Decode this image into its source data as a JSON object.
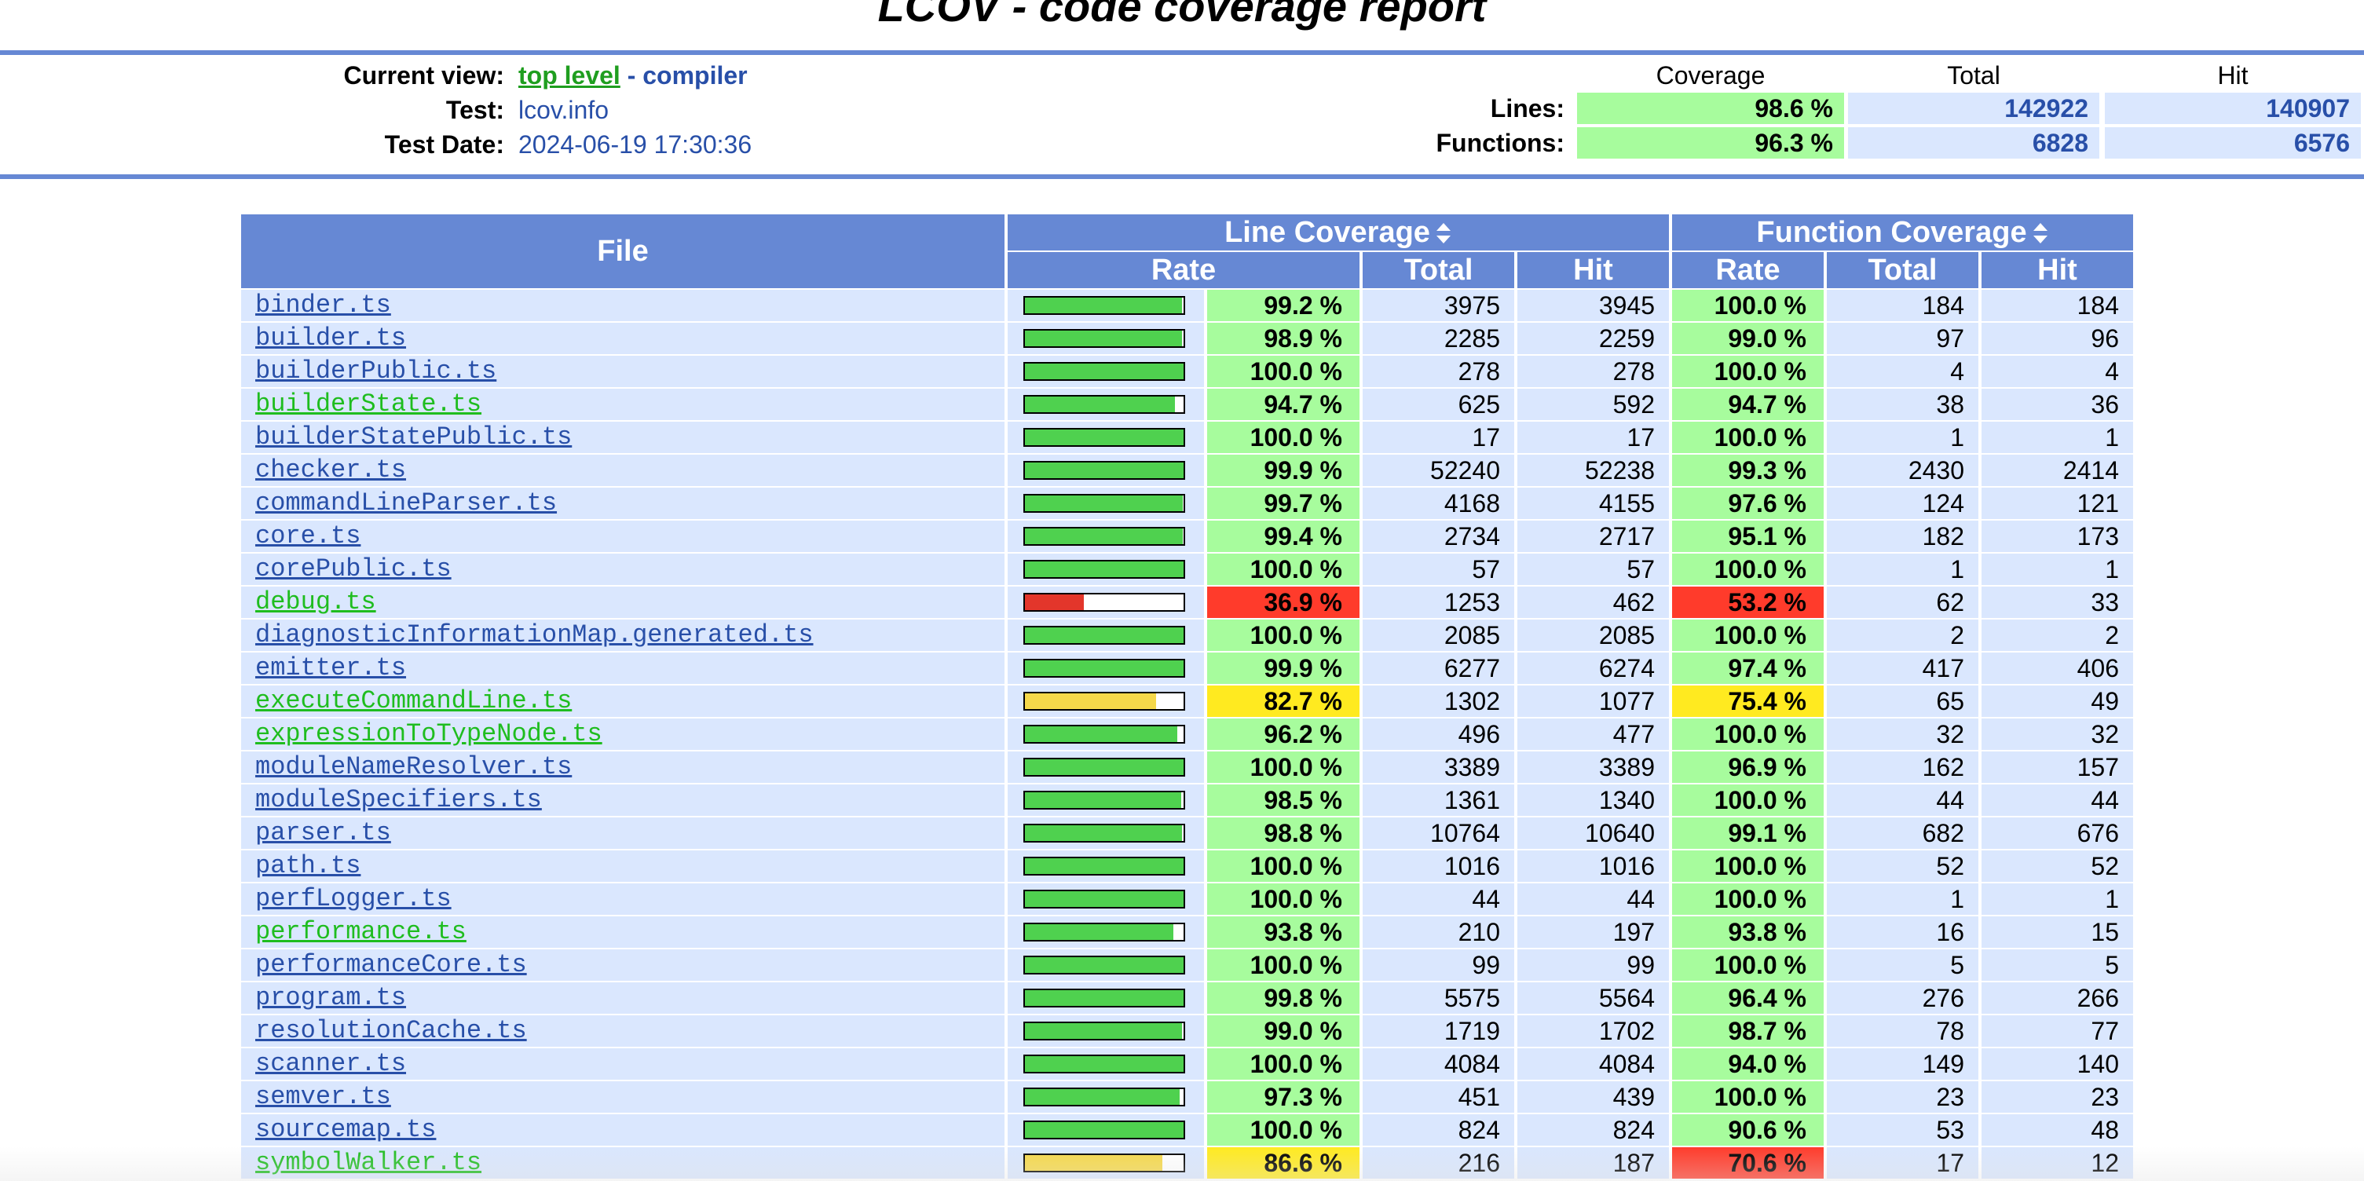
{
  "title": "LCOV - code coverage report",
  "header": {
    "labels": {
      "current_view": "Current view:",
      "test": "Test:",
      "test_date": "Test Date:"
    },
    "current_view": {
      "link": "top level",
      "separator": " - ",
      "current": "compiler"
    },
    "test": "lcov.info",
    "test_date": "2024-06-19 17:30:36",
    "summary": {
      "columns": [
        "Coverage",
        "Total",
        "Hit"
      ],
      "lines": {
        "label": "Lines:",
        "coverage": "98.6 %",
        "total": "142922",
        "hit": "140907"
      },
      "functions": {
        "label": "Functions:",
        "coverage": "96.3 %",
        "total": "6828",
        "hit": "6576"
      }
    }
  },
  "table": {
    "headers": {
      "file": "File",
      "line_coverage": "Line Coverage",
      "function_coverage": "Function Coverage",
      "rate": "Rate",
      "total": "Total",
      "hit": "Hit"
    },
    "colors": {
      "high": "#a7fc9d",
      "medium": "#ffea20",
      "low": "#ff3b2b",
      "bar_high": "#4fd14f",
      "bar_medium": "#f5d84a",
      "bar_low": "#e3362b"
    },
    "rows": [
      {
        "file": "binder.ts",
        "line_rate": "99.2 %",
        "line_pct": 99.2,
        "line_level": "hi",
        "line_total": "3975",
        "line_hit": "3945",
        "fn_rate": "100.0 %",
        "fn_level": "hi",
        "fn_total": "184",
        "fn_hit": "184"
      },
      {
        "file": "builder.ts",
        "line_rate": "98.9 %",
        "line_pct": 98.9,
        "line_level": "hi",
        "line_total": "2285",
        "line_hit": "2259",
        "fn_rate": "99.0 %",
        "fn_level": "hi",
        "fn_total": "97",
        "fn_hit": "96"
      },
      {
        "file": "builderPublic.ts",
        "line_rate": "100.0 %",
        "line_pct": 100,
        "line_level": "hi",
        "line_total": "278",
        "line_hit": "278",
        "fn_rate": "100.0 %",
        "fn_level": "hi",
        "fn_total": "4",
        "fn_hit": "4"
      },
      {
        "file": "builderState.ts",
        "line_rate": "94.7 %",
        "line_pct": 94.7,
        "line_level": "hi",
        "line_total": "625",
        "line_hit": "592",
        "fn_rate": "94.7 %",
        "fn_level": "hi",
        "fn_total": "38",
        "fn_hit": "36"
      },
      {
        "file": "builderStatePublic.ts",
        "line_rate": "100.0 %",
        "line_pct": 100,
        "line_level": "hi",
        "line_total": "17",
        "line_hit": "17",
        "fn_rate": "100.0 %",
        "fn_level": "hi",
        "fn_total": "1",
        "fn_hit": "1"
      },
      {
        "file": "checker.ts",
        "line_rate": "99.9 %",
        "line_pct": 99.9,
        "line_level": "hi",
        "line_total": "52240",
        "line_hit": "52238",
        "fn_rate": "99.3 %",
        "fn_level": "hi",
        "fn_total": "2430",
        "fn_hit": "2414"
      },
      {
        "file": "commandLineParser.ts",
        "line_rate": "99.7 %",
        "line_pct": 99.7,
        "line_level": "hi",
        "line_total": "4168",
        "line_hit": "4155",
        "fn_rate": "97.6 %",
        "fn_level": "hi",
        "fn_total": "124",
        "fn_hit": "121"
      },
      {
        "file": "core.ts",
        "line_rate": "99.4 %",
        "line_pct": 99.4,
        "line_level": "hi",
        "line_total": "2734",
        "line_hit": "2717",
        "fn_rate": "95.1 %",
        "fn_level": "hi",
        "fn_total": "182",
        "fn_hit": "173"
      },
      {
        "file": "corePublic.ts",
        "line_rate": "100.0 %",
        "line_pct": 100,
        "line_level": "hi",
        "line_total": "57",
        "line_hit": "57",
        "fn_rate": "100.0 %",
        "fn_level": "hi",
        "fn_total": "1",
        "fn_hit": "1"
      },
      {
        "file": "debug.ts",
        "line_rate": "36.9 %",
        "line_pct": 36.9,
        "line_level": "lo",
        "line_total": "1253",
        "line_hit": "462",
        "fn_rate": "53.2 %",
        "fn_level": "lo",
        "fn_total": "62",
        "fn_hit": "33"
      },
      {
        "file": "diagnosticInformationMap.generated.ts",
        "line_rate": "100.0 %",
        "line_pct": 100,
        "line_level": "hi",
        "line_total": "2085",
        "line_hit": "2085",
        "fn_rate": "100.0 %",
        "fn_level": "hi",
        "fn_total": "2",
        "fn_hit": "2"
      },
      {
        "file": "emitter.ts",
        "line_rate": "99.9 %",
        "line_pct": 99.9,
        "line_level": "hi",
        "line_total": "6277",
        "line_hit": "6274",
        "fn_rate": "97.4 %",
        "fn_level": "hi",
        "fn_total": "417",
        "fn_hit": "406"
      },
      {
        "file": "executeCommandLine.ts",
        "line_rate": "82.7 %",
        "line_pct": 82.7,
        "line_level": "med",
        "line_total": "1302",
        "line_hit": "1077",
        "fn_rate": "75.4 %",
        "fn_level": "med",
        "fn_total": "65",
        "fn_hit": "49"
      },
      {
        "file": "expressionToTypeNode.ts",
        "line_rate": "96.2 %",
        "line_pct": 96.2,
        "line_level": "hi",
        "line_total": "496",
        "line_hit": "477",
        "fn_rate": "100.0 %",
        "fn_level": "hi",
        "fn_total": "32",
        "fn_hit": "32"
      },
      {
        "file": "moduleNameResolver.ts",
        "line_rate": "100.0 %",
        "line_pct": 100,
        "line_level": "hi",
        "line_total": "3389",
        "line_hit": "3389",
        "fn_rate": "96.9 %",
        "fn_level": "hi",
        "fn_total": "162",
        "fn_hit": "157"
      },
      {
        "file": "moduleSpecifiers.ts",
        "line_rate": "98.5 %",
        "line_pct": 98.5,
        "line_level": "hi",
        "line_total": "1361",
        "line_hit": "1340",
        "fn_rate": "100.0 %",
        "fn_level": "hi",
        "fn_total": "44",
        "fn_hit": "44"
      },
      {
        "file": "parser.ts",
        "line_rate": "98.8 %",
        "line_pct": 98.8,
        "line_level": "hi",
        "line_total": "10764",
        "line_hit": "10640",
        "fn_rate": "99.1 %",
        "fn_level": "hi",
        "fn_total": "682",
        "fn_hit": "676"
      },
      {
        "file": "path.ts",
        "line_rate": "100.0 %",
        "line_pct": 100,
        "line_level": "hi",
        "line_total": "1016",
        "line_hit": "1016",
        "fn_rate": "100.0 %",
        "fn_level": "hi",
        "fn_total": "52",
        "fn_hit": "52"
      },
      {
        "file": "perfLogger.ts",
        "line_rate": "100.0 %",
        "line_pct": 100,
        "line_level": "hi",
        "line_total": "44",
        "line_hit": "44",
        "fn_rate": "100.0 %",
        "fn_level": "hi",
        "fn_total": "1",
        "fn_hit": "1"
      },
      {
        "file": "performance.ts",
        "line_rate": "93.8 %",
        "line_pct": 93.8,
        "line_level": "hi",
        "line_total": "210",
        "line_hit": "197",
        "fn_rate": "93.8 %",
        "fn_level": "hi",
        "fn_total": "16",
        "fn_hit": "15"
      },
      {
        "file": "performanceCore.ts",
        "line_rate": "100.0 %",
        "line_pct": 100,
        "line_level": "hi",
        "line_total": "99",
        "line_hit": "99",
        "fn_rate": "100.0 %",
        "fn_level": "hi",
        "fn_total": "5",
        "fn_hit": "5"
      },
      {
        "file": "program.ts",
        "line_rate": "99.8 %",
        "line_pct": 99.8,
        "line_level": "hi",
        "line_total": "5575",
        "line_hit": "5564",
        "fn_rate": "96.4 %",
        "fn_level": "hi",
        "fn_total": "276",
        "fn_hit": "266"
      },
      {
        "file": "resolutionCache.ts",
        "line_rate": "99.0 %",
        "line_pct": 99.0,
        "line_level": "hi",
        "line_total": "1719",
        "line_hit": "1702",
        "fn_rate": "98.7 %",
        "fn_level": "hi",
        "fn_total": "78",
        "fn_hit": "77"
      },
      {
        "file": "scanner.ts",
        "line_rate": "100.0 %",
        "line_pct": 100,
        "line_level": "hi",
        "line_total": "4084",
        "line_hit": "4084",
        "fn_rate": "94.0 %",
        "fn_level": "hi",
        "fn_total": "149",
        "fn_hit": "140"
      },
      {
        "file": "semver.ts",
        "line_rate": "97.3 %",
        "line_pct": 97.3,
        "line_level": "hi",
        "line_total": "451",
        "line_hit": "439",
        "fn_rate": "100.0 %",
        "fn_level": "hi",
        "fn_total": "23",
        "fn_hit": "23"
      },
      {
        "file": "sourcemap.ts",
        "line_rate": "100.0 %",
        "line_pct": 100,
        "line_level": "hi",
        "line_total": "824",
        "line_hit": "824",
        "fn_rate": "90.6 %",
        "fn_level": "hi",
        "fn_total": "53",
        "fn_hit": "48"
      },
      {
        "file": "symbolWalker.ts",
        "line_rate": "86.6 %",
        "line_pct": 86.6,
        "line_level": "med",
        "line_total": "216",
        "line_hit": "187",
        "fn_rate": "70.6 %",
        "fn_level": "lo",
        "fn_total": "17",
        "fn_hit": "12"
      }
    ]
  }
}
